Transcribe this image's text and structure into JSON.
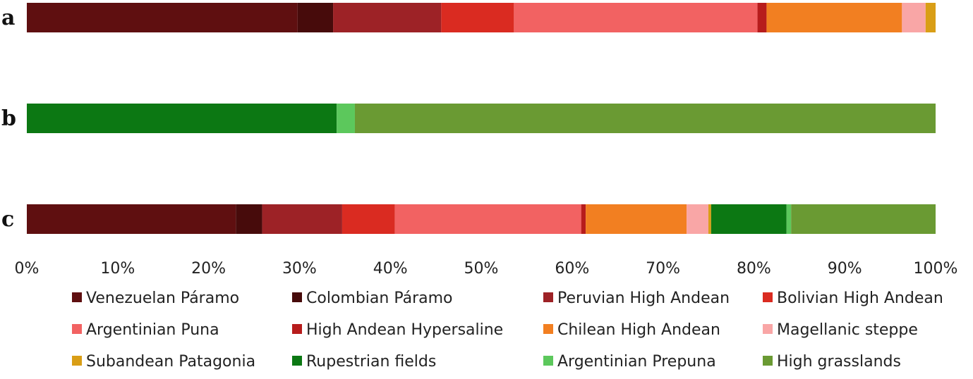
{
  "chart_data": {
    "type": "bar",
    "orientation": "horizontal",
    "stacked": "100%",
    "categories": [
      "a",
      "b",
      "c"
    ],
    "series": [
      {
        "name": "Venezuelan Páramo",
        "color": "#5f0f10",
        "values": [
          29.8,
          0,
          23.0
        ]
      },
      {
        "name": "Colombian Páramo",
        "color": "#470b0b",
        "values": [
          3.9,
          0,
          2.9
        ]
      },
      {
        "name": "Peruvian High Andean",
        "color": "#9d2226",
        "values": [
          11.9,
          0,
          8.8
        ]
      },
      {
        "name": "Bolivian High Andean",
        "color": "#da2b21",
        "values": [
          8.0,
          0,
          5.8
        ]
      },
      {
        "name": "Argentinian Puna",
        "color": "#f26262",
        "values": [
          26.8,
          0,
          20.5
        ]
      },
      {
        "name": "High Andean Hypersaline",
        "color": "#b71c1c",
        "values": [
          1.0,
          0,
          0.5
        ]
      },
      {
        "name": "Chilean High Andean",
        "color": "#f27f21",
        "values": [
          14.9,
          0,
          11.1
        ]
      },
      {
        "name": "Magellanic steppe",
        "color": "#f9a6a6",
        "values": [
          2.6,
          0,
          2.4
        ]
      },
      {
        "name": "Subandean Patagonia",
        "color": "#d99e16",
        "values": [
          1.1,
          0,
          0.3
        ]
      },
      {
        "name": "Rupestrian fields",
        "color": "#0c7813",
        "values": [
          0,
          34.1,
          8.3
        ]
      },
      {
        "name": "Argentinian Prepuna",
        "color": "#5cc85c",
        "values": [
          0,
          2.0,
          0.5
        ]
      },
      {
        "name": "High grasslands",
        "color": "#6a9a33",
        "values": [
          0,
          63.9,
          15.9
        ]
      }
    ],
    "xlim": [
      0,
      100
    ],
    "xticks": [
      "0%",
      "10%",
      "20%",
      "30%",
      "40%",
      "50%",
      "60%",
      "70%",
      "80%",
      "90%",
      "100%"
    ],
    "grid": false,
    "legend_position": "bottom"
  }
}
